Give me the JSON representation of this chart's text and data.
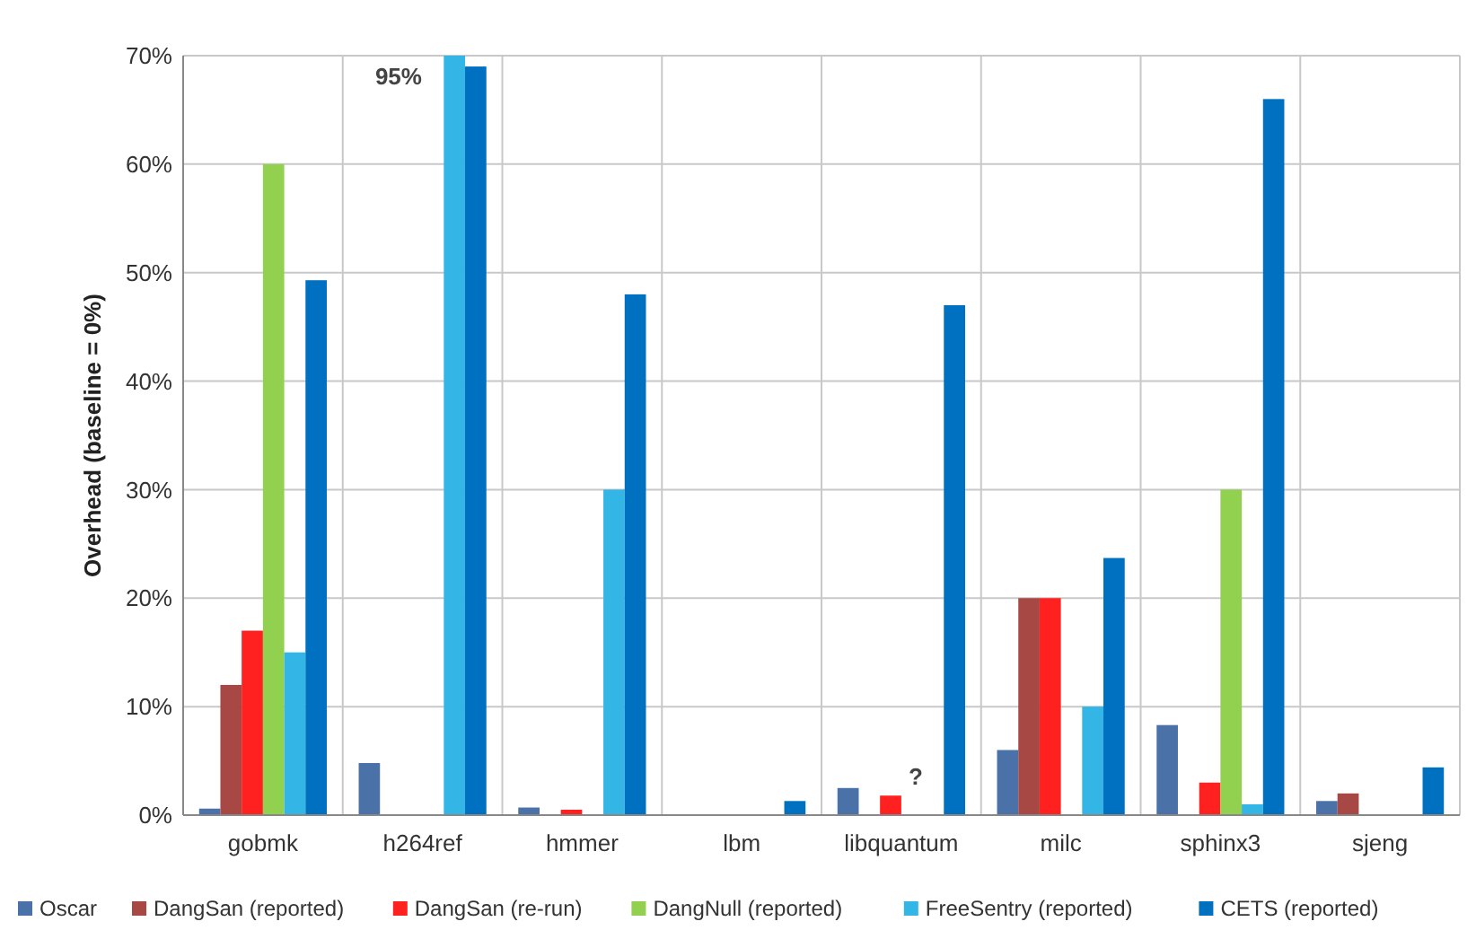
{
  "chart_data": {
    "type": "bar",
    "ylabel": "Overhead (baseline = 0%)",
    "categories": [
      "gobmk",
      "h264ref",
      "hmmer",
      "lbm",
      "libquantum",
      "milc",
      "sphinx3",
      "sjeng"
    ],
    "series": [
      {
        "name": "Oscar",
        "color": "#4a72a8",
        "values": [
          0.6,
          4.8,
          0.7,
          null,
          2.5,
          6,
          8.3,
          1.3
        ]
      },
      {
        "name": "DangSan (reported)",
        "color": "#a84844",
        "values": [
          12,
          null,
          null,
          null,
          null,
          20,
          null,
          2
        ]
      },
      {
        "name": "DangSan (re-run)",
        "color": "#ff2020",
        "values": [
          17,
          null,
          0.5,
          null,
          1.8,
          20,
          3,
          null
        ]
      },
      {
        "name": "DangNull (reported)",
        "color": "#92d050",
        "values": [
          60,
          null,
          null,
          null,
          null,
          null,
          30,
          null
        ]
      },
      {
        "name": "FreeSentry (reported)",
        "color": "#33b5e5",
        "values": [
          15,
          70,
          30,
          null,
          null,
          10,
          1,
          null
        ]
      },
      {
        "name": "CETS (reported)",
        "color": "#0070c0",
        "values": [
          49.3,
          69,
          48,
          1.3,
          47,
          23.7,
          66,
          4.4
        ]
      }
    ],
    "ylim": [
      0,
      70
    ],
    "yticks": [
      {
        "value": 0,
        "label": "0%"
      },
      {
        "value": 10,
        "label": "10%"
      },
      {
        "value": 20,
        "label": "20%"
      },
      {
        "value": 30,
        "label": "30%"
      },
      {
        "value": 40,
        "label": "40%"
      },
      {
        "value": 50,
        "label": "50%"
      },
      {
        "value": 60,
        "label": "60%"
      },
      {
        "value": 70,
        "label": "70%"
      }
    ],
    "grid": true,
    "legend": "bottom",
    "annotations": [
      "95%",
      {
        "text": "?",
        "x": "libquantum",
        "y": 1.8
      }
    ]
  }
}
